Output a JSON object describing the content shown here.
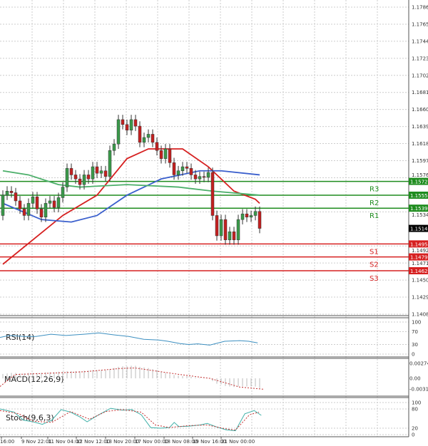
{
  "chart_data": [
    {
      "type": "candlestick",
      "panel": "price",
      "ylim": [
        1.14085,
        1.17865
      ],
      "y_ticks": [
        "1.17865",
        "1.17655",
        "1.17445",
        "1.17235",
        "1.17025",
        "1.16815",
        "1.16605",
        "1.16395",
        "1.16185",
        "1.15975",
        "1.15765",
        "1.15345",
        "1.14925",
        "1.14715",
        "1.14505",
        "1.14295",
        "1.14085"
      ],
      "grid": true,
      "closes": [
        1.1555,
        1.156,
        1.1558,
        1.1548,
        1.1538,
        1.153,
        1.1545,
        1.1553,
        1.1538,
        1.1528,
        1.1545,
        1.1548,
        1.154,
        1.1552,
        1.1565,
        1.1588,
        1.158,
        1.1575,
        1.1568,
        1.158,
        1.1575,
        1.159,
        1.1582,
        1.1585,
        1.1578,
        1.161,
        1.1618,
        1.1648,
        1.1642,
        1.1635,
        1.1648,
        1.164,
        1.162,
        1.1626,
        1.163,
        1.162,
        1.161,
        1.16,
        1.1612,
        1.1595,
        1.158,
        1.1585,
        1.159,
        1.1588,
        1.158,
        1.1575,
        1.1578,
        1.1577,
        1.1583,
        1.153,
        1.1505,
        1.1525,
        1.15,
        1.151,
        1.15,
        1.1525,
        1.1532,
        1.1528,
        1.153,
        1.1535,
        1.15141
      ],
      "first_open": 1.153,
      "moving_averages": [
        {
          "color": "#d62020",
          "points": [
            [
              0,
              1.147
            ],
            [
              14,
              1.153
            ],
            [
              22,
              1.1555
            ],
            [
              29,
              1.16
            ],
            [
              34,
              1.1612
            ],
            [
              42,
              1.1612
            ],
            [
              48,
              1.159
            ],
            [
              54,
              1.156
            ],
            [
              59,
              1.155
            ],
            [
              60,
              1.1545
            ]
          ]
        },
        {
          "color": "#3a5fcd",
          "points": [
            [
              0,
              1.1545
            ],
            [
              9,
              1.1525
            ],
            [
              16,
              1.1522
            ],
            [
              22,
              1.153
            ],
            [
              29,
              1.1555
            ],
            [
              37,
              1.1575
            ],
            [
              46,
              1.1585
            ],
            [
              51,
              1.1585
            ],
            [
              60,
              1.158
            ]
          ]
        },
        {
          "color": "#4caf6a",
          "points": [
            [
              0,
              1.1585
            ],
            [
              6,
              1.158
            ],
            [
              13,
              1.1568
            ],
            [
              18,
              1.1565
            ],
            [
              29,
              1.1568
            ],
            [
              41,
              1.1565
            ],
            [
              49,
              1.156
            ],
            [
              60,
              1.1555
            ]
          ]
        }
      ],
      "levels": [
        {
          "name": "R3",
          "price": "1.15720",
          "value": 1.1572,
          "color": "#1e8c1e"
        },
        {
          "name": "R2",
          "price": "1.15550",
          "value": 1.1555,
          "color": "#1e8c1e"
        },
        {
          "name": "R1",
          "price": "1.15390",
          "value": 1.1539,
          "color": "#1e8c1e"
        },
        {
          "name": "S1",
          "price": "1.14950",
          "value": 1.1495,
          "color": "#d62020"
        },
        {
          "name": "S2",
          "price": "1.14790",
          "value": 1.1479,
          "color": "#d62020"
        },
        {
          "name": "S3",
          "price": "1.14620",
          "value": 1.1462,
          "color": "#d62020"
        }
      ],
      "current_price": {
        "label": "1.15141",
        "value": 1.15141
      }
    },
    {
      "type": "line",
      "panel": "rsi",
      "title": "RSI(14)",
      "ylim": [
        0,
        100
      ],
      "y_ticks": [
        "100",
        "70",
        "30",
        "0"
      ],
      "points": [
        [
          0,
          52
        ],
        [
          3,
          58
        ],
        [
          8,
          55
        ],
        [
          12,
          55
        ],
        [
          17,
          62
        ],
        [
          22,
          58
        ],
        [
          28,
          62
        ],
        [
          33,
          66
        ],
        [
          38,
          60
        ],
        [
          43,
          55
        ],
        [
          48,
          46
        ],
        [
          53,
          44
        ],
        [
          56,
          40
        ],
        [
          60,
          33
        ],
        [
          63,
          30
        ],
        [
          66,
          32
        ],
        [
          70,
          28
        ],
        [
          75,
          40
        ],
        [
          80,
          42
        ],
        [
          83,
          40
        ],
        [
          86,
          35
        ]
      ]
    },
    {
      "type": "macd",
      "panel": "macd",
      "title": "MACD(12,26,9)",
      "ylim": [
        -0.003142,
        0.002742
      ],
      "y_ticks": [
        "0.002742",
        "0.00",
        "-0.003142"
      ],
      "histogram": [
        0.0008,
        0.0009,
        0.001,
        0.001,
        0.0009,
        0.0009,
        0.001,
        0.001,
        0.001,
        0.001,
        0.0011,
        0.0011,
        0.0011,
        0.0012,
        0.0012,
        0.0013,
        0.0013,
        0.0013,
        0.0013,
        0.0014,
        0.0014,
        0.0015,
        0.0015,
        0.0015,
        0.0015,
        0.0017,
        0.0019,
        0.0021,
        0.0022,
        0.0022,
        0.0023,
        0.0023,
        0.0021,
        0.002,
        0.0019,
        0.0017,
        0.0015,
        0.0012,
        0.001,
        0.0008,
        0.0006,
        0.0005,
        0.0004,
        0.0004,
        0.0003,
        0.0002,
        0.0001,
        0.0001,
        0.0,
        -0.0005,
        -0.001,
        -0.0011,
        -0.0014,
        -0.0015,
        -0.0016,
        -0.0015,
        -0.0015,
        -0.0015,
        -0.0015,
        -0.0015,
        -0.0018
      ],
      "signal_points": [
        [
          0,
          -0.0015
        ],
        [
          5,
          0.0007
        ],
        [
          15,
          0.0009
        ],
        [
          28,
          0.0012
        ],
        [
          40,
          0.0018
        ],
        [
          45,
          0.0019
        ],
        [
          60,
          0.0007
        ],
        [
          70,
          0.0
        ],
        [
          80,
          -0.0016
        ],
        [
          88,
          -0.002
        ]
      ]
    },
    {
      "type": "line",
      "panel": "stoch",
      "title": "Stoch(9,6,3)",
      "ylim": [
        0,
        100
      ],
      "y_ticks": [
        "100",
        "80",
        "20",
        "0"
      ],
      "main_points": [
        [
          0,
          80
        ],
        [
          6,
          70
        ],
        [
          10,
          45
        ],
        [
          14,
          40
        ],
        [
          18,
          32
        ],
        [
          22,
          45
        ],
        [
          26,
          78
        ],
        [
          30,
          70
        ],
        [
          34,
          55
        ],
        [
          37,
          40
        ],
        [
          42,
          62
        ],
        [
          47,
          82
        ],
        [
          52,
          76
        ],
        [
          56,
          78
        ],
        [
          60,
          62
        ],
        [
          64,
          22
        ],
        [
          68,
          20
        ],
        [
          72,
          22
        ],
        [
          74,
          38
        ],
        [
          76,
          25
        ],
        [
          80,
          26
        ],
        [
          85,
          30
        ],
        [
          88,
          35
        ],
        [
          92,
          24
        ],
        [
          96,
          15
        ],
        [
          100,
          12
        ],
        [
          104,
          65
        ],
        [
          108,
          75
        ],
        [
          111,
          60
        ]
      ],
      "signal_points": [
        [
          0,
          75
        ],
        [
          8,
          65
        ],
        [
          14,
          42
        ],
        [
          22,
          38
        ],
        [
          30,
          72
        ],
        [
          38,
          48
        ],
        [
          45,
          72
        ],
        [
          52,
          78
        ],
        [
          60,
          70
        ],
        [
          66,
          30
        ],
        [
          72,
          22
        ],
        [
          80,
          28
        ],
        [
          88,
          30
        ],
        [
          96,
          18
        ],
        [
          100,
          14
        ],
        [
          106,
          62
        ],
        [
          110,
          70
        ]
      ]
    }
  ],
  "x_ticks": [
    "16:00",
    "9 Nov 22:01",
    "11 Nov 04:00",
    "12 Nov 12:00",
    "13 Nov 20:00",
    "17 Nov 00:00",
    "18 Nov 08:00",
    "19 Nov 16:00",
    "21 Nov 00:00"
  ]
}
